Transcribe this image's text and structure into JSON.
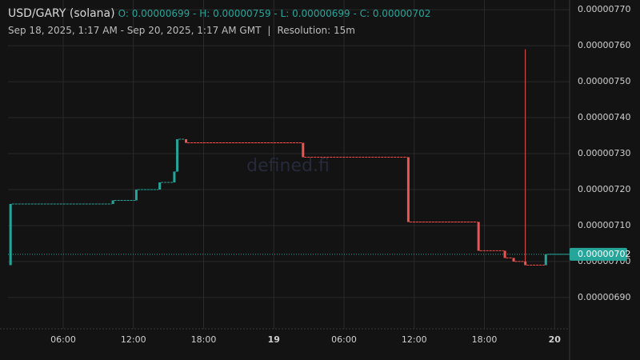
{
  "chart_data": {
    "type": "candlestick",
    "title": "USD/GARY (solana)",
    "ohlc_summary": "O: 0.00000699 - H: 0.00000759 - L: 0.00000699 - C: 0.00000702",
    "date_range": "Sep 18, 2025, 1:17 AM - Sep 20, 2025, 1:17 AM GMT",
    "separator": "|",
    "resolution": "Resolution: 15m",
    "watermark": "defined.fi",
    "up_color": "#26a69a",
    "down_color": "#ef5350",
    "grid": true,
    "x": [
      "2025-09-18T01:30Z",
      "2025-09-18T10:15Z",
      "2025-09-18T12:15Z",
      "2025-09-18T14:15Z",
      "2025-09-18T15:30Z",
      "2025-09-18T15:45Z",
      "2025-09-18T16:30Z",
      "2025-09-19T02:30Z",
      "2025-09-19T11:30Z",
      "2025-09-19T17:30Z",
      "2025-09-19T19:45Z",
      "2025-09-19T20:30Z",
      "2025-09-19T21:30Z",
      "2025-09-19T23:15Z"
    ],
    "open": [
      6.99e-06,
      7.16e-06,
      7.17e-06,
      7.2e-06,
      7.22e-06,
      7.25e-06,
      7.34e-06,
      7.33e-06,
      7.29e-06,
      7.11e-06,
      7.03e-06,
      7.01e-06,
      7e-06,
      6.99e-06
    ],
    "high": [
      7.16e-06,
      7.17e-06,
      7.2e-06,
      7.22e-06,
      7.25e-06,
      7.34e-06,
      7.34e-06,
      7.33e-06,
      7.29e-06,
      7.11e-06,
      7.03e-06,
      7.01e-06,
      7.59e-06,
      7.02e-06
    ],
    "low": [
      6.99e-06,
      7.16e-06,
      7.17e-06,
      7.2e-06,
      7.22e-06,
      7.25e-06,
      7.33e-06,
      7.29e-06,
      7.11e-06,
      7.03e-06,
      7.01e-06,
      7e-06,
      6.99e-06,
      6.99e-06
    ],
    "close": [
      7.16e-06,
      7.17e-06,
      7.2e-06,
      7.22e-06,
      7.25e-06,
      7.34e-06,
      7.33e-06,
      7.29e-06,
      7.11e-06,
      7.03e-06,
      7.01e-06,
      7e-06,
      6.99e-06,
      7.02e-06
    ],
    "last_price": {
      "value": 7.02e-06,
      "label": "0.00000702"
    },
    "xlim": [
      "2025-09-18T01:17Z",
      "2025-09-20T01:17Z"
    ],
    "xticks": [
      {
        "value": "2025-09-18T06:00Z",
        "label": "06:00"
      },
      {
        "value": "2025-09-18T12:00Z",
        "label": "12:00"
      },
      {
        "value": "2025-09-18T18:00Z",
        "label": "18:00"
      },
      {
        "value": "2025-09-19T00:00Z",
        "label": "19"
      },
      {
        "value": "2025-09-19T06:00Z",
        "label": "06:00"
      },
      {
        "value": "2025-09-19T12:00Z",
        "label": "12:00"
      },
      {
        "value": "2025-09-19T18:00Z",
        "label": "18:00"
      },
      {
        "value": "2025-09-20T00:00Z",
        "label": "20"
      }
    ],
    "ylim": [
      6.813e-06,
      7.727e-06
    ],
    "yticks": [
      {
        "value": 6.9e-06,
        "label": "0.00000690"
      },
      {
        "value": 7e-06,
        "label": "0.00000700"
      },
      {
        "value": 7.1e-06,
        "label": "0.00000710"
      },
      {
        "value": 7.2e-06,
        "label": "0.00000720"
      },
      {
        "value": 7.3e-06,
        "label": "0.00000730"
      },
      {
        "value": 7.4e-06,
        "label": "0.00000740"
      },
      {
        "value": 7.5e-06,
        "label": "0.00000750"
      },
      {
        "value": 7.6e-06,
        "label": "0.00000760"
      },
      {
        "value": 7.7e-06,
        "label": "0.00000770"
      }
    ]
  }
}
